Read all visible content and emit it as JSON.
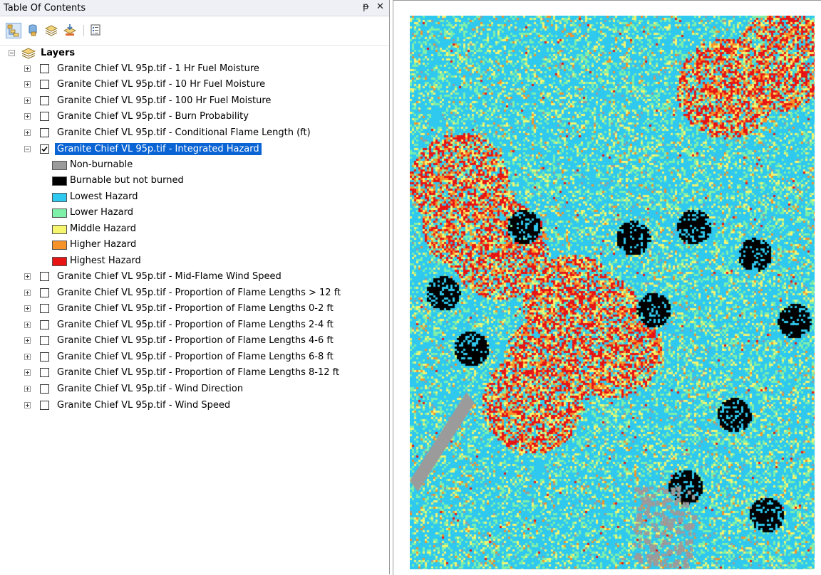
{
  "panel": {
    "title": "Table Of Contents",
    "pin_glyph": "ᵽ",
    "close_glyph": "✕"
  },
  "toolbar": {
    "buttons": [
      {
        "name": "list-by-drawing-order-icon",
        "active": true
      },
      {
        "name": "list-by-source-icon"
      },
      {
        "name": "list-by-visibility-icon"
      },
      {
        "name": "list-by-selection-icon"
      },
      {
        "name": "options-icon"
      }
    ]
  },
  "tree": {
    "root_label": "Layers",
    "layers_before": [
      {
        "label": "Granite Chief VL 95p.tif - 1 Hr Fuel Moisture",
        "checked": false
      },
      {
        "label": "Granite Chief VL 95p.tif - 10 Hr Fuel Moisture",
        "checked": false
      },
      {
        "label": "Granite Chief VL 95p.tif - 100 Hr Fuel Moisture",
        "checked": false
      },
      {
        "label": "Granite Chief VL 95p.tif - Burn Probability",
        "checked": false
      },
      {
        "label": "Granite Chief VL 95p.tif - Conditional Flame Length (ft)",
        "checked": false
      }
    ],
    "selected_layer": {
      "label": "Granite Chief VL 95p.tif - Integrated Hazard",
      "checked": true
    },
    "legend": [
      {
        "label": "Non-burnable",
        "color": "#9b9b9b"
      },
      {
        "label": "Burnable but not burned",
        "color": "#000000"
      },
      {
        "label": "Lowest Hazard",
        "color": "#2fc8ee"
      },
      {
        "label": "Lower Hazard",
        "color": "#7ff0a8"
      },
      {
        "label": "Middle Hazard",
        "color": "#f5f56e"
      },
      {
        "label": "Higher Hazard",
        "color": "#f5922a"
      },
      {
        "label": "Highest Hazard",
        "color": "#e81414"
      }
    ],
    "layers_after": [
      {
        "label": "Granite Chief VL 95p.tif - Mid-Flame Wind Speed",
        "checked": false
      },
      {
        "label": "Granite Chief VL 95p.tif - Proportion of Flame Lengths > 12 ft",
        "checked": false
      },
      {
        "label": "Granite Chief VL 95p.tif - Proportion of Flame Lengths 0-2 ft",
        "checked": false
      },
      {
        "label": "Granite Chief VL 95p.tif - Proportion of Flame Lengths 2-4 ft",
        "checked": false
      },
      {
        "label": "Granite Chief VL 95p.tif - Proportion of Flame Lengths 4-6 ft",
        "checked": false
      },
      {
        "label": "Granite Chief VL 95p.tif - Proportion of Flame Lengths 6-8 ft",
        "checked": false
      },
      {
        "label": "Granite Chief VL 95p.tif - Proportion of Flame Lengths 8-12 ft",
        "checked": false
      },
      {
        "label": "Granite Chief VL 95p.tif - Wind Direction",
        "checked": false
      },
      {
        "label": "Granite Chief VL 95p.tif - Wind Speed",
        "checked": false
      }
    ]
  },
  "colors": {
    "selection": "#0a64d4",
    "map_base": "#2fc8ee"
  }
}
